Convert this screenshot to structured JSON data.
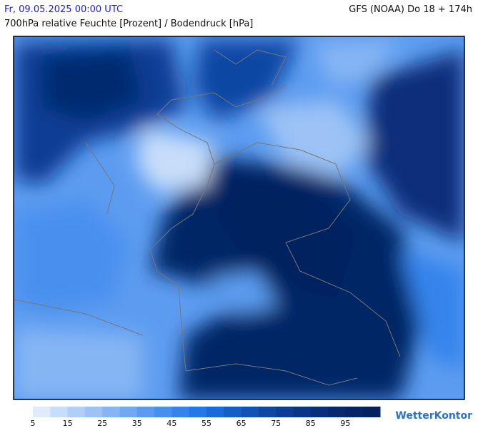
{
  "header": {
    "date": "Fr, 09.05.2025 00:00 UTC",
    "model": "GFS (NOAA) Do 18 + 174h",
    "subtitle": "700hPa relative Feuchte [Prozent] / Bodendruck [hPa]"
  },
  "legend": {
    "colors": [
      "#e0ecfc",
      "#c8ddfa",
      "#b0cff8",
      "#9cc2f6",
      "#86b5f4",
      "#70a8f2",
      "#5c9cf0",
      "#4890ee",
      "#3484ec",
      "#2278e6",
      "#1a6ad8",
      "#145ec8",
      "#1052b6",
      "#0c47a4",
      "#0a3e94",
      "#083686",
      "#072f7a",
      "#062a70",
      "#062566",
      "#05215e"
    ],
    "ticks": [
      5,
      15,
      25,
      35,
      45,
      55,
      65,
      75,
      85,
      95
    ]
  },
  "logo": "WetterKontor"
}
